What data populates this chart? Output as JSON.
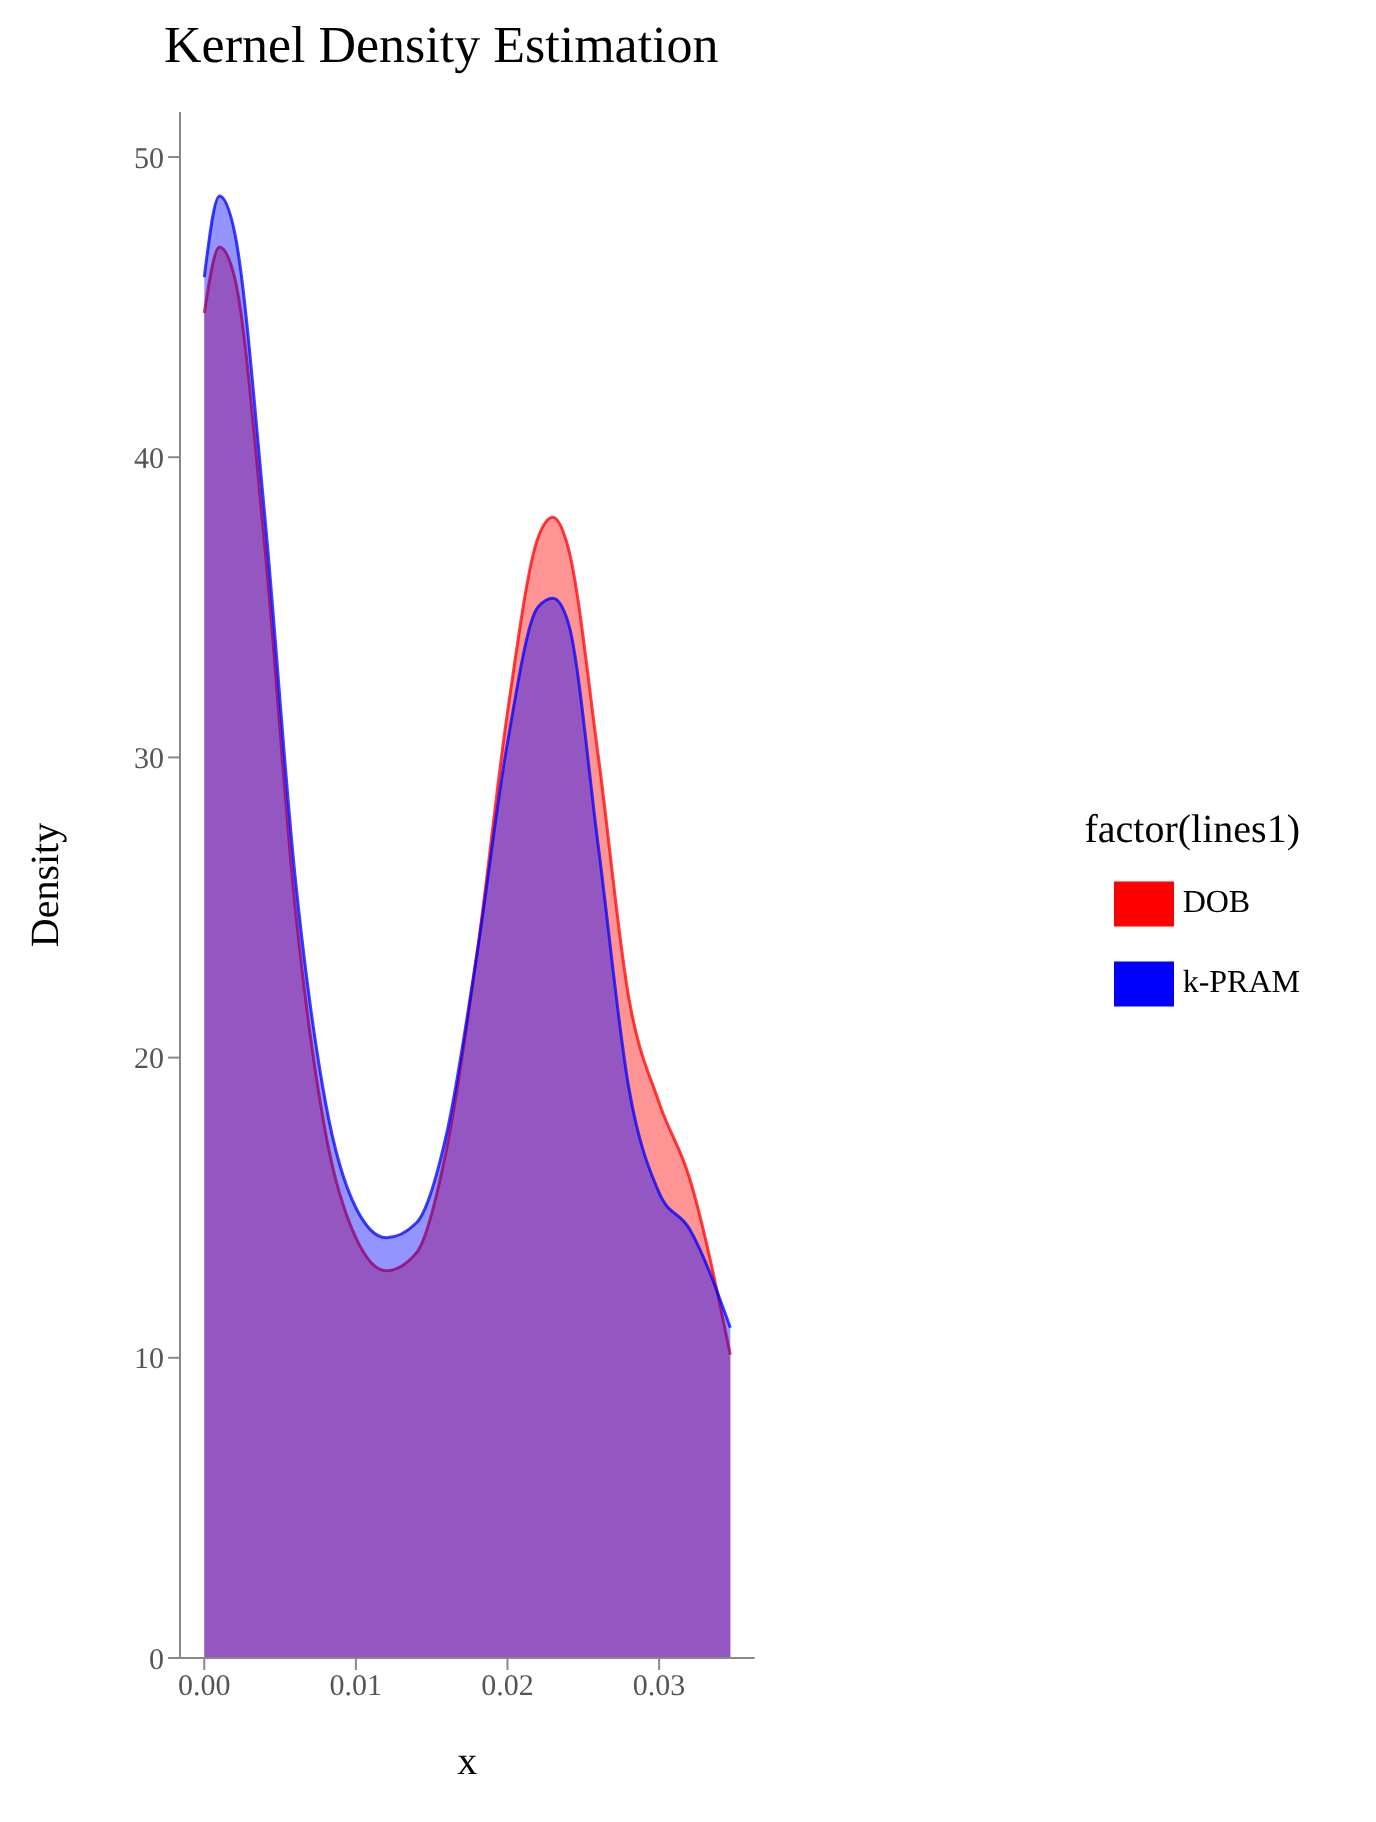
{
  "chart_data": {
    "type": "area",
    "title": "Kernel Density Estimation",
    "xlabel": "x",
    "ylabel": "Density",
    "legend_title": "factor(lines1)",
    "x": [
      0,
      0.001,
      0.002,
      0.004,
      0.006,
      0.008,
      0.01,
      0.012,
      0.014,
      0.016,
      0.018,
      0.02,
      0.022,
      0.023,
      0.024,
      0.026,
      0.028,
      0.03,
      0.032,
      0.0347
    ],
    "series": [
      {
        "name": "DOB",
        "color": "#ff0000",
        "values": [
          44.8,
          47,
          46,
          37,
          25,
          17.5,
          14,
          12.9,
          13.5,
          17,
          23.5,
          31.5,
          37.3,
          38,
          37,
          30,
          22,
          18.5,
          16,
          10.1
        ]
      },
      {
        "name": "k-PRAM",
        "color": "#0000ff",
        "values": [
          46,
          48.7,
          47.5,
          38,
          26,
          18.5,
          15,
          14,
          14.5,
          17.5,
          23.5,
          30.5,
          35,
          35.3,
          34.5,
          27,
          19,
          15.5,
          14.3,
          11
        ]
      }
    ],
    "xlim": [
      -0.0016,
      0.0363
    ],
    "xticks": [
      {
        "value": 0,
        "label": "0.00"
      },
      {
        "value": 0.01,
        "label": "0.01"
      },
      {
        "value": 0.02,
        "label": "0.02"
      },
      {
        "value": 0.03,
        "label": "0.03"
      }
    ],
    "ylim": [
      0,
      51.5
    ],
    "yticks": [
      0,
      10,
      20,
      30,
      40,
      50
    ],
    "grid": false,
    "legend": "right"
  }
}
